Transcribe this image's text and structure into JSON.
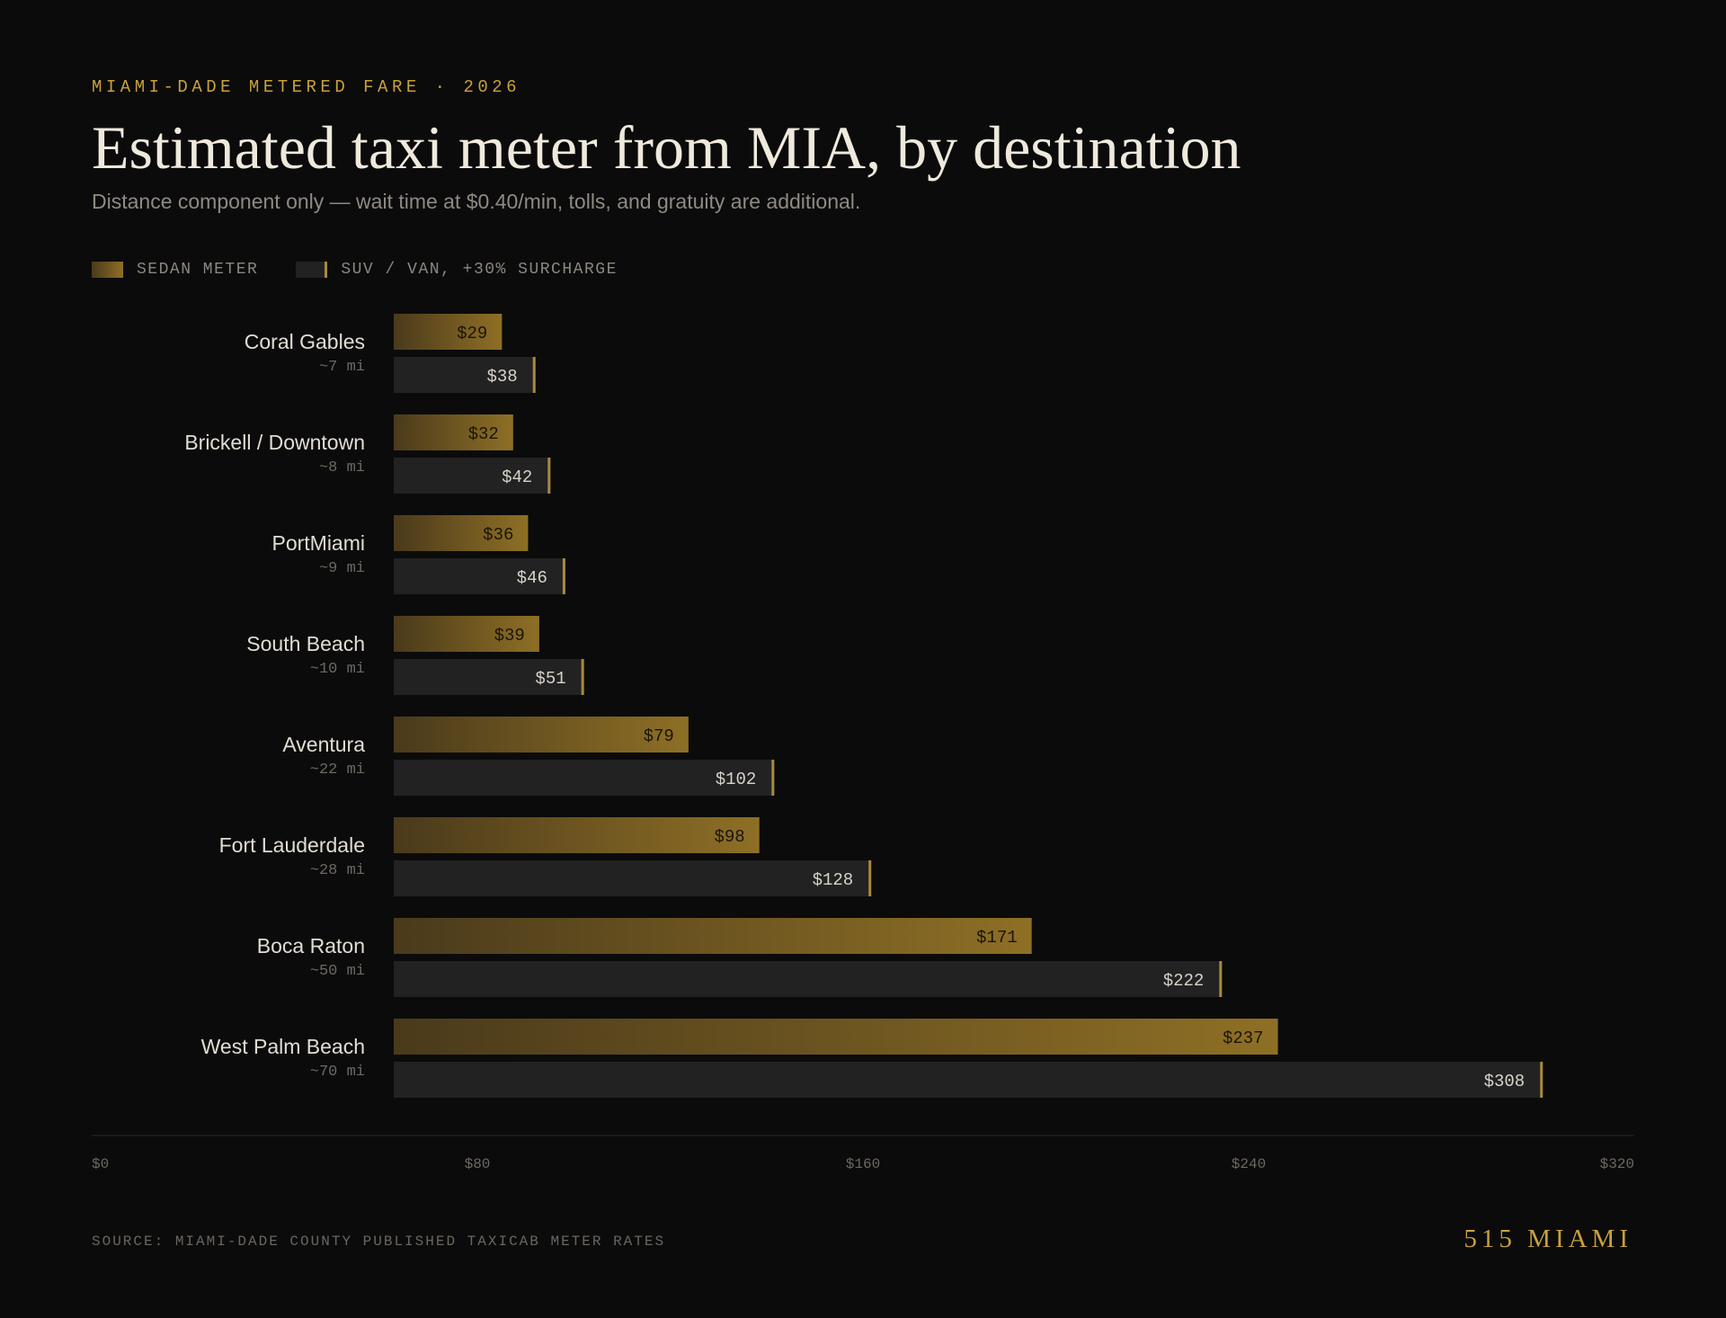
{
  "header": {
    "eyebrow": "MIAMI-DADE METERED FARE · 2026",
    "title": "Estimated taxi meter from MIA, by destination",
    "subtitle": "Distance component only — wait time at $0.40/min, tolls, and gratuity are additional."
  },
  "legend": {
    "sedan_label": "SEDAN METER",
    "suv_label": "SUV / VAN, +30% SURCHARGE"
  },
  "colors": {
    "background": "#0b0b0b",
    "accent_gold": "#c9a13b",
    "sedan_gradient_start": "#4a3a1b",
    "sedan_gradient_end": "#8e6f25",
    "suv_bar": "#222222",
    "suv_marker": "#a88a3f"
  },
  "chart_data": {
    "type": "bar",
    "orientation": "horizontal",
    "categories": [
      "Coral Gables",
      "Brickell / Downtown",
      "PortMiami",
      "South Beach",
      "Aventura",
      "Fort Lauderdale",
      "Boca Raton",
      "West Palm Beach"
    ],
    "category_subtitles": [
      "~7 mi",
      "~8 mi",
      "~9 mi",
      "~10 mi",
      "~22 mi",
      "~28 mi",
      "~50 mi",
      "~70 mi"
    ],
    "series": [
      {
        "name": "SEDAN METER",
        "values": [
          29,
          32,
          36,
          39,
          79,
          98,
          171,
          237
        ]
      },
      {
        "name": "SUV / VAN, +30% SURCHARGE",
        "values": [
          38,
          42,
          46,
          51,
          102,
          128,
          222,
          308
        ]
      }
    ],
    "value_labels": [
      [
        "$29",
        "$32",
        "$36",
        "$39",
        "$79",
        "$98",
        "$171",
        "$237"
      ],
      [
        "$38",
        "$42",
        "$46",
        "$51",
        "$102",
        "$128",
        "$222",
        "$308"
      ]
    ],
    "x_ticks": [
      0,
      80,
      160,
      240,
      320
    ],
    "x_tick_labels": [
      "$0",
      "$80",
      "$160",
      "$240",
      "$320"
    ],
    "xlim": [
      0,
      320
    ],
    "grid": false,
    "legend_position": "top-left"
  },
  "footer": {
    "source": "SOURCE: MIAMI-DADE COUNTY PUBLISHED TAXICAB METER RATES",
    "brand": "515 MIAMI"
  }
}
